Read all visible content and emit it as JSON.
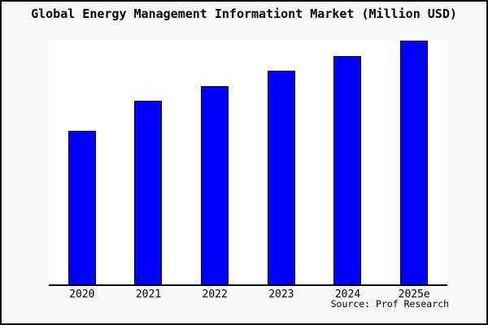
{
  "window": {
    "background_color": "#f8f8f8",
    "plot_background_color": "#ffffff",
    "border_color": "#000000"
  },
  "chart_data": {
    "type": "bar",
    "title": "Global Energy Management Informationt Market (Million USD)",
    "categories": [
      "2020",
      "2021",
      "2022",
      "2023",
      "2024",
      "2025e"
    ],
    "values": [
      62.9,
      75.2,
      81.5,
      87.7,
      93.7,
      100
    ],
    "xlabel": "",
    "ylabel": "",
    "ylim": [
      0,
      100.5
    ],
    "grid": false,
    "legend": "none",
    "y_axis_visible": false,
    "bar_color": "#0000ff",
    "bar_border_color": "#000000"
  },
  "footer": {
    "source_label": "Source: Prof Research"
  }
}
